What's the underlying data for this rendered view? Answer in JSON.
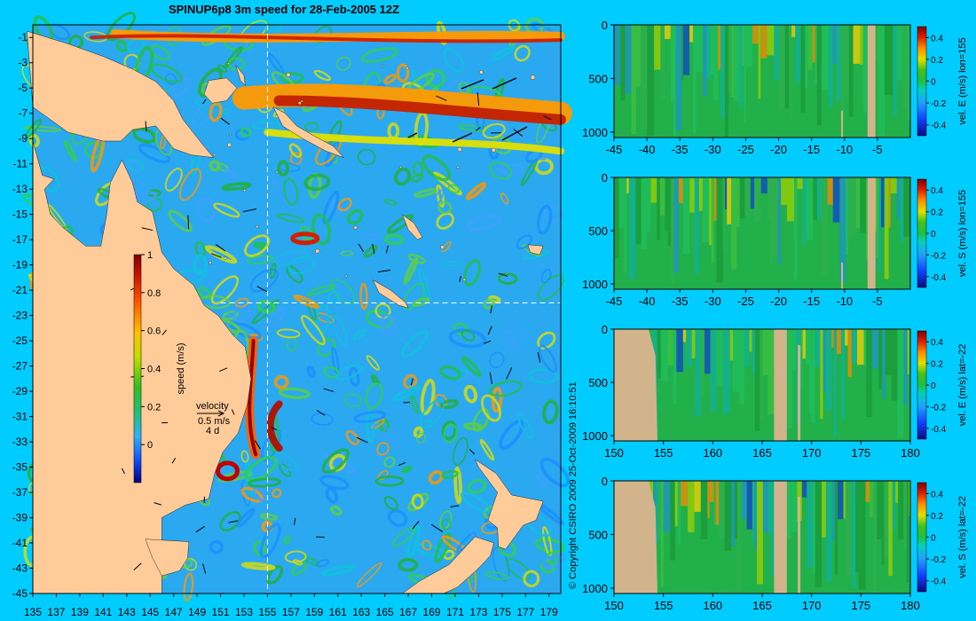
{
  "title": "SPINUP6p8 3m speed for 28-Feb-2005 12Z",
  "copyright": "© Copyright CSIRO 2009   25-Oct-2009 16:10:51",
  "colors": {
    "background": "#00ccff",
    "land": "#ffcc99",
    "section_land": "#d2b48c"
  },
  "chart_data": [
    {
      "type": "heatmap",
      "name": "speed map",
      "x_ticks": [
        "135",
        "137",
        "139",
        "141",
        "143",
        "145",
        "147",
        "149",
        "151",
        "153",
        "155",
        "157",
        "159",
        "161",
        "163",
        "165",
        "167",
        "169",
        "171",
        "173",
        "175",
        "177",
        "179"
      ],
      "y_ticks": [
        "-1",
        "-3",
        "-5",
        "-7",
        "-9",
        "-11",
        "-13",
        "-15",
        "-17",
        "-19",
        "-21",
        "-23",
        "-25",
        "-27",
        "-29",
        "-31",
        "-33",
        "-35",
        "-37",
        "-39",
        "-41",
        "-43",
        "-45"
      ],
      "xlim": [
        135,
        180
      ],
      "ylim": [
        -45,
        0
      ],
      "section_lon": 155,
      "section_lat": -22,
      "colorbar": {
        "label": "speed (m/s)",
        "ticks": [
          "1",
          "0.8",
          "0.6",
          "0.4",
          "0.2",
          "0"
        ],
        "range": [
          -0.2,
          1
        ]
      },
      "velocity_legend": {
        "label": "velocity",
        "scale": "0.5 m/s",
        "sublabel": "4 d"
      }
    },
    {
      "type": "heatmap",
      "name": "vel E lon=155",
      "x_ticks": [
        "-45",
        "-40",
        "-35",
        "-30",
        "-25",
        "-20",
        "-15",
        "-10",
        "-5"
      ],
      "y_ticks": [
        "0",
        "500",
        "1000"
      ],
      "xlim": [
        -45,
        0
      ],
      "ylim": [
        1050,
        0
      ],
      "colorbar": {
        "label": "vel. E (m/s) lon=155",
        "ticks": [
          "0.4",
          "0.2",
          "0",
          "-0.2",
          "-0.4"
        ]
      }
    },
    {
      "type": "heatmap",
      "name": "vel S lon=155",
      "x_ticks": [
        "-45",
        "-40",
        "-35",
        "-30",
        "-25",
        "-20",
        "-15",
        "-10",
        "-5"
      ],
      "y_ticks": [
        "0",
        "500",
        "1000"
      ],
      "xlim": [
        -45,
        0
      ],
      "ylim": [
        1050,
        0
      ],
      "colorbar": {
        "label": "vel. S (m/s) lon=155",
        "ticks": [
          "0.4",
          "0.2",
          "0",
          "-0.2",
          "-0.4"
        ]
      }
    },
    {
      "type": "heatmap",
      "name": "vel E lat=-22",
      "x_ticks": [
        "150",
        "155",
        "160",
        "165",
        "170",
        "175",
        "180"
      ],
      "y_ticks": [
        "0",
        "500",
        "1000"
      ],
      "xlim": [
        150,
        180
      ],
      "ylim": [
        1050,
        0
      ],
      "colorbar": {
        "label": "vel. E (m/s) lat=-22",
        "ticks": [
          "0.4",
          "0.2",
          "0",
          "-0.2",
          "-0.4"
        ]
      }
    },
    {
      "type": "heatmap",
      "name": "vel S lat=-22",
      "x_ticks": [
        "150",
        "155",
        "160",
        "165",
        "170",
        "175",
        "180"
      ],
      "y_ticks": [
        "0",
        "500",
        "1000"
      ],
      "xlim": [
        150,
        180
      ],
      "ylim": [
        1050,
        0
      ],
      "colorbar": {
        "label": "vel. S (m/s) lat=-22",
        "ticks": [
          "0.4",
          "0.2",
          "0",
          "-0.2",
          "-0.4"
        ]
      }
    }
  ]
}
